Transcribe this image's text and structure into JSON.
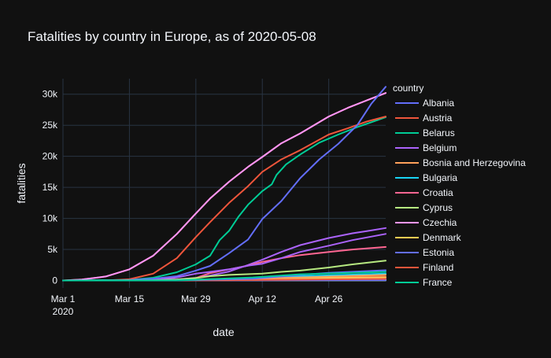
{
  "chart_data": {
    "type": "line",
    "title": "Fatalities by country in Europe, as of 2020-05-08",
    "xlabel": "date",
    "ylabel": "fatalities",
    "legend_title": "country",
    "legend_position": "right",
    "grid": true,
    "background": "#111111",
    "grid_color": "#283442",
    "text_color": "#f2f5fa",
    "x_start": "2020-03-01",
    "x_end": "2020-05-08",
    "ylim": [
      -1200,
      32500
    ],
    "x_ticks": [
      {
        "date": "2020-03-01",
        "label": "Mar 1",
        "sublabel": "2020"
      },
      {
        "date": "2020-03-15",
        "label": "Mar 15",
        "sublabel": ""
      },
      {
        "date": "2020-03-29",
        "label": "Mar 29",
        "sublabel": ""
      },
      {
        "date": "2020-04-12",
        "label": "Apr 12",
        "sublabel": ""
      },
      {
        "date": "2020-04-26",
        "label": "Apr 26",
        "sublabel": ""
      }
    ],
    "y_ticks": [
      {
        "value": 0,
        "label": "0"
      },
      {
        "value": 5000,
        "label": "5k"
      },
      {
        "value": 10000,
        "label": "10k"
      },
      {
        "value": 15000,
        "label": "15k"
      },
      {
        "value": 20000,
        "label": "20k"
      },
      {
        "value": 25000,
        "label": "25k"
      },
      {
        "value": 30000,
        "label": "30k"
      }
    ],
    "series": [
      {
        "name": "Albania",
        "color": "#636efa",
        "points": [
          [
            "2020-03-01",
            0
          ],
          [
            "2020-05-08",
            35
          ]
        ]
      },
      {
        "name": "Austria",
        "color": "#EF553B",
        "points": [
          [
            "2020-03-01",
            0
          ],
          [
            "2020-03-20",
            10
          ],
          [
            "2020-04-05",
            200
          ],
          [
            "2020-04-20",
            500
          ],
          [
            "2020-05-08",
            620
          ]
        ]
      },
      {
        "name": "Belarus",
        "color": "#00cc96",
        "points": [
          [
            "2020-03-01",
            0
          ],
          [
            "2020-04-01",
            1
          ],
          [
            "2020-04-20",
            50
          ],
          [
            "2020-05-08",
            140
          ]
        ]
      },
      {
        "name": "Belgium",
        "color": "#ab63fa",
        "points": [
          [
            "2020-03-01",
            0
          ],
          [
            "2020-03-15",
            5
          ],
          [
            "2020-03-20",
            70
          ],
          [
            "2020-03-25",
            180
          ],
          [
            "2020-03-29",
            430
          ],
          [
            "2020-04-01",
            800
          ],
          [
            "2020-04-05",
            1450
          ],
          [
            "2020-04-09",
            2500
          ],
          [
            "2020-04-12",
            3350
          ],
          [
            "2020-04-16",
            4600
          ],
          [
            "2020-04-20",
            5700
          ],
          [
            "2020-04-26",
            6850
          ],
          [
            "2020-05-01",
            7600
          ],
          [
            "2020-05-04",
            7950
          ],
          [
            "2020-05-08",
            8450
          ]
        ]
      },
      {
        "name": "Bosnia and Herzegovina",
        "color": "#FFA15A",
        "points": [
          [
            "2020-03-01",
            0
          ],
          [
            "2020-04-01",
            10
          ],
          [
            "2020-05-08",
            120
          ]
        ]
      },
      {
        "name": "Bulgaria",
        "color": "#19d3f3",
        "points": [
          [
            "2020-03-01",
            0
          ],
          [
            "2020-04-01",
            10
          ],
          [
            "2020-05-08",
            80
          ]
        ]
      },
      {
        "name": "Croatia",
        "color": "#FF6692",
        "points": [
          [
            "2020-03-01",
            0
          ],
          [
            "2020-04-01",
            10
          ],
          [
            "2020-05-08",
            95
          ]
        ]
      },
      {
        "name": "Cyprus",
        "color": "#B6E880",
        "points": [
          [
            "2020-03-01",
            0
          ],
          [
            "2020-04-01",
            10
          ],
          [
            "2020-05-08",
            15
          ]
        ]
      },
      {
        "name": "Czechia",
        "color": "#FF97FF",
        "points": [
          [
            "2020-03-01",
            0
          ],
          [
            "2020-03-25",
            50
          ],
          [
            "2020-04-10",
            200
          ],
          [
            "2020-05-08",
            280
          ]
        ]
      },
      {
        "name": "Denmark",
        "color": "#FECB52",
        "points": [
          [
            "2020-03-01",
            0
          ],
          [
            "2020-03-20",
            10
          ],
          [
            "2020-04-01",
            100
          ],
          [
            "2020-04-15",
            300
          ],
          [
            "2020-05-08",
            520
          ]
        ]
      },
      {
        "name": "Estonia",
        "color": "#636efa",
        "points": [
          [
            "2020-03-01",
            0
          ],
          [
            "2020-04-01",
            5
          ],
          [
            "2020-05-08",
            60
          ]
        ]
      },
      {
        "name": "Finland",
        "color": "#EF553B",
        "points": [
          [
            "2020-03-01",
            0
          ],
          [
            "2020-04-01",
            20
          ],
          [
            "2020-05-08",
            260
          ]
        ]
      },
      {
        "name": "France",
        "color": "#00cc96",
        "points": [
          [
            "2020-03-01",
            0
          ],
          [
            "2020-03-15",
            90
          ],
          [
            "2020-03-20",
            450
          ],
          [
            "2020-03-25",
            1330
          ],
          [
            "2020-03-29",
            2600
          ],
          [
            "2020-04-01",
            4000
          ],
          [
            "2020-04-03",
            6500
          ],
          [
            "2020-04-05",
            8000
          ],
          [
            "2020-04-07",
            10300
          ],
          [
            "2020-04-09",
            12200
          ],
          [
            "2020-04-12",
            14400
          ],
          [
            "2020-04-14",
            15500
          ],
          [
            "2020-04-15",
            17000
          ],
          [
            "2020-04-17",
            18700
          ],
          [
            "2020-04-20",
            20300
          ],
          [
            "2020-04-24",
            22200
          ],
          [
            "2020-04-28",
            23500
          ],
          [
            "2020-05-02",
            24700
          ],
          [
            "2020-05-05",
            25500
          ],
          [
            "2020-05-08",
            26300
          ]
        ]
      },
      {
        "name": "",
        "color": "#EF553B",
        "points": [
          [
            "2020-03-01",
            0
          ],
          [
            "2020-03-05",
            150
          ],
          [
            "2020-03-10",
            650
          ],
          [
            "2020-03-15",
            1800
          ],
          [
            "2020-03-20",
            4000
          ],
          [
            "2020-03-25",
            7500
          ],
          [
            "2020-03-29",
            10800
          ],
          [
            "2020-04-01",
            13200
          ],
          [
            "2020-04-05",
            15900
          ],
          [
            "2020-04-09",
            18300
          ],
          [
            "2020-04-12",
            19900
          ],
          [
            "2020-04-16",
            22100
          ],
          [
            "2020-04-20",
            23700
          ],
          [
            "2020-04-26",
            26400
          ],
          [
            "2020-04-30",
            27800
          ],
          [
            "2020-05-04",
            29000
          ],
          [
            "2020-05-08",
            30200
          ]
        ]
      },
      {
        "name": "",
        "color": "#FF97FF",
        "points": [
          [
            "2020-03-01",
            0
          ],
          [
            "2020-03-05",
            150
          ],
          [
            "2020-03-10",
            650
          ],
          [
            "2020-03-15",
            1800
          ],
          [
            "2020-03-20",
            4000
          ],
          [
            "2020-03-25",
            7500
          ],
          [
            "2020-03-29",
            10800
          ],
          [
            "2020-04-01",
            13200
          ],
          [
            "2020-04-05",
            15900
          ],
          [
            "2020-04-09",
            18300
          ],
          [
            "2020-04-12",
            19900
          ],
          [
            "2020-04-16",
            22100
          ],
          [
            "2020-04-20",
            23700
          ],
          [
            "2020-04-26",
            26400
          ],
          [
            "2020-04-30",
            27800
          ],
          [
            "2020-05-04",
            29000
          ],
          [
            "2020-05-08",
            30200
          ]
        ]
      },
      {
        "name": "",
        "color": "#EF553B",
        "points": [
          [
            "2020-03-01",
            0
          ],
          [
            "2020-03-10",
            5
          ],
          [
            "2020-03-15",
            200
          ],
          [
            "2020-03-20",
            1100
          ],
          [
            "2020-03-25",
            3600
          ],
          [
            "2020-03-29",
            7000
          ],
          [
            "2020-04-01",
            9400
          ],
          [
            "2020-04-05",
            12500
          ],
          [
            "2020-04-09",
            15200
          ],
          [
            "2020-04-12",
            17500
          ],
          [
            "2020-04-16",
            19500
          ],
          [
            "2020-04-20",
            21000
          ],
          [
            "2020-04-26",
            23500
          ],
          [
            "2020-04-30",
            24500
          ],
          [
            "2020-05-04",
            25600
          ],
          [
            "2020-05-08",
            26400
          ]
        ]
      },
      {
        "name": "",
        "color": "#636efa",
        "points": [
          [
            "2020-03-01",
            0
          ],
          [
            "2020-03-10",
            5
          ],
          [
            "2020-03-15",
            100
          ],
          [
            "2020-03-20",
            300
          ],
          [
            "2020-03-25",
            700
          ],
          [
            "2020-03-29",
            1600
          ],
          [
            "2020-04-01",
            2350
          ],
          [
            "2020-04-05",
            4400
          ],
          [
            "2020-04-09",
            6600
          ],
          [
            "2020-04-12",
            9900
          ],
          [
            "2020-04-16",
            12800
          ],
          [
            "2020-04-20",
            16500
          ],
          [
            "2020-04-24",
            19500
          ],
          [
            "2020-04-28",
            22000
          ],
          [
            "2020-05-02",
            25000
          ],
          [
            "2020-05-05",
            28500
          ],
          [
            "2020-05-08",
            31200
          ]
        ]
      },
      {
        "name": "",
        "color": "#FF6692",
        "points": [
          [
            "2020-03-01",
            0
          ],
          [
            "2020-03-20",
            0
          ],
          [
            "2020-03-25",
            40
          ],
          [
            "2020-03-29",
            400
          ],
          [
            "2020-04-01",
            1200
          ],
          [
            "2020-04-05",
            1800
          ],
          [
            "2020-04-09",
            2400
          ],
          [
            "2020-04-12",
            3000
          ],
          [
            "2020-04-16",
            3600
          ],
          [
            "2020-04-20",
            4100
          ],
          [
            "2020-04-26",
            4600
          ],
          [
            "2020-05-01",
            5000
          ],
          [
            "2020-05-08",
            5400
          ]
        ]
      },
      {
        "name": "",
        "color": "#ab63fa",
        "points": [
          [
            "2020-03-01",
            0
          ],
          [
            "2020-03-20",
            50
          ],
          [
            "2020-03-25",
            500
          ],
          [
            "2020-03-29",
            1100
          ],
          [
            "2020-04-01",
            1400
          ],
          [
            "2020-04-05",
            1800
          ],
          [
            "2020-04-09",
            2400
          ],
          [
            "2020-04-12",
            2700
          ],
          [
            "2020-04-16",
            3600
          ],
          [
            "2020-04-20",
            4600
          ],
          [
            "2020-04-26",
            5600
          ],
          [
            "2020-05-01",
            6500
          ],
          [
            "2020-05-08",
            7500
          ]
        ]
      },
      {
        "name": "",
        "color": "#B6E880",
        "points": [
          [
            "2020-03-01",
            0
          ],
          [
            "2020-03-20",
            30
          ],
          [
            "2020-03-25",
            150
          ],
          [
            "2020-03-29",
            400
          ],
          [
            "2020-04-01",
            700
          ],
          [
            "2020-04-05",
            900
          ],
          [
            "2020-04-12",
            1100
          ],
          [
            "2020-04-16",
            1400
          ],
          [
            "2020-04-20",
            1600
          ],
          [
            "2020-04-26",
            2100
          ],
          [
            "2020-05-01",
            2600
          ],
          [
            "2020-05-08",
            3200
          ]
        ]
      },
      {
        "name": "",
        "color": "#19d3f3",
        "points": [
          [
            "2020-03-01",
            0
          ],
          [
            "2020-03-25",
            50
          ],
          [
            "2020-04-05",
            300
          ],
          [
            "2020-04-20",
            700
          ],
          [
            "2020-05-08",
            1100
          ]
        ]
      },
      {
        "name": "",
        "color": "#FFA15A",
        "points": [
          [
            "2020-03-01",
            0
          ],
          [
            "2020-03-25",
            20
          ],
          [
            "2020-04-05",
            150
          ],
          [
            "2020-04-20",
            500
          ],
          [
            "2020-05-08",
            900
          ]
        ]
      },
      {
        "name": "",
        "color": "#636efa",
        "points": [
          [
            "2020-03-01",
            0
          ],
          [
            "2020-03-25",
            10
          ],
          [
            "2020-04-10",
            300
          ],
          [
            "2020-04-20",
            900
          ],
          [
            "2020-04-26",
            1250
          ],
          [
            "2020-05-08",
            1650
          ]
        ]
      },
      {
        "name": "",
        "color": "#00cc96",
        "points": [
          [
            "2020-03-01",
            0
          ],
          [
            "2020-03-25",
            20
          ],
          [
            "2020-04-10",
            500
          ],
          [
            "2020-04-20",
            1000
          ],
          [
            "2020-05-08",
            1400
          ]
        ]
      }
    ]
  }
}
